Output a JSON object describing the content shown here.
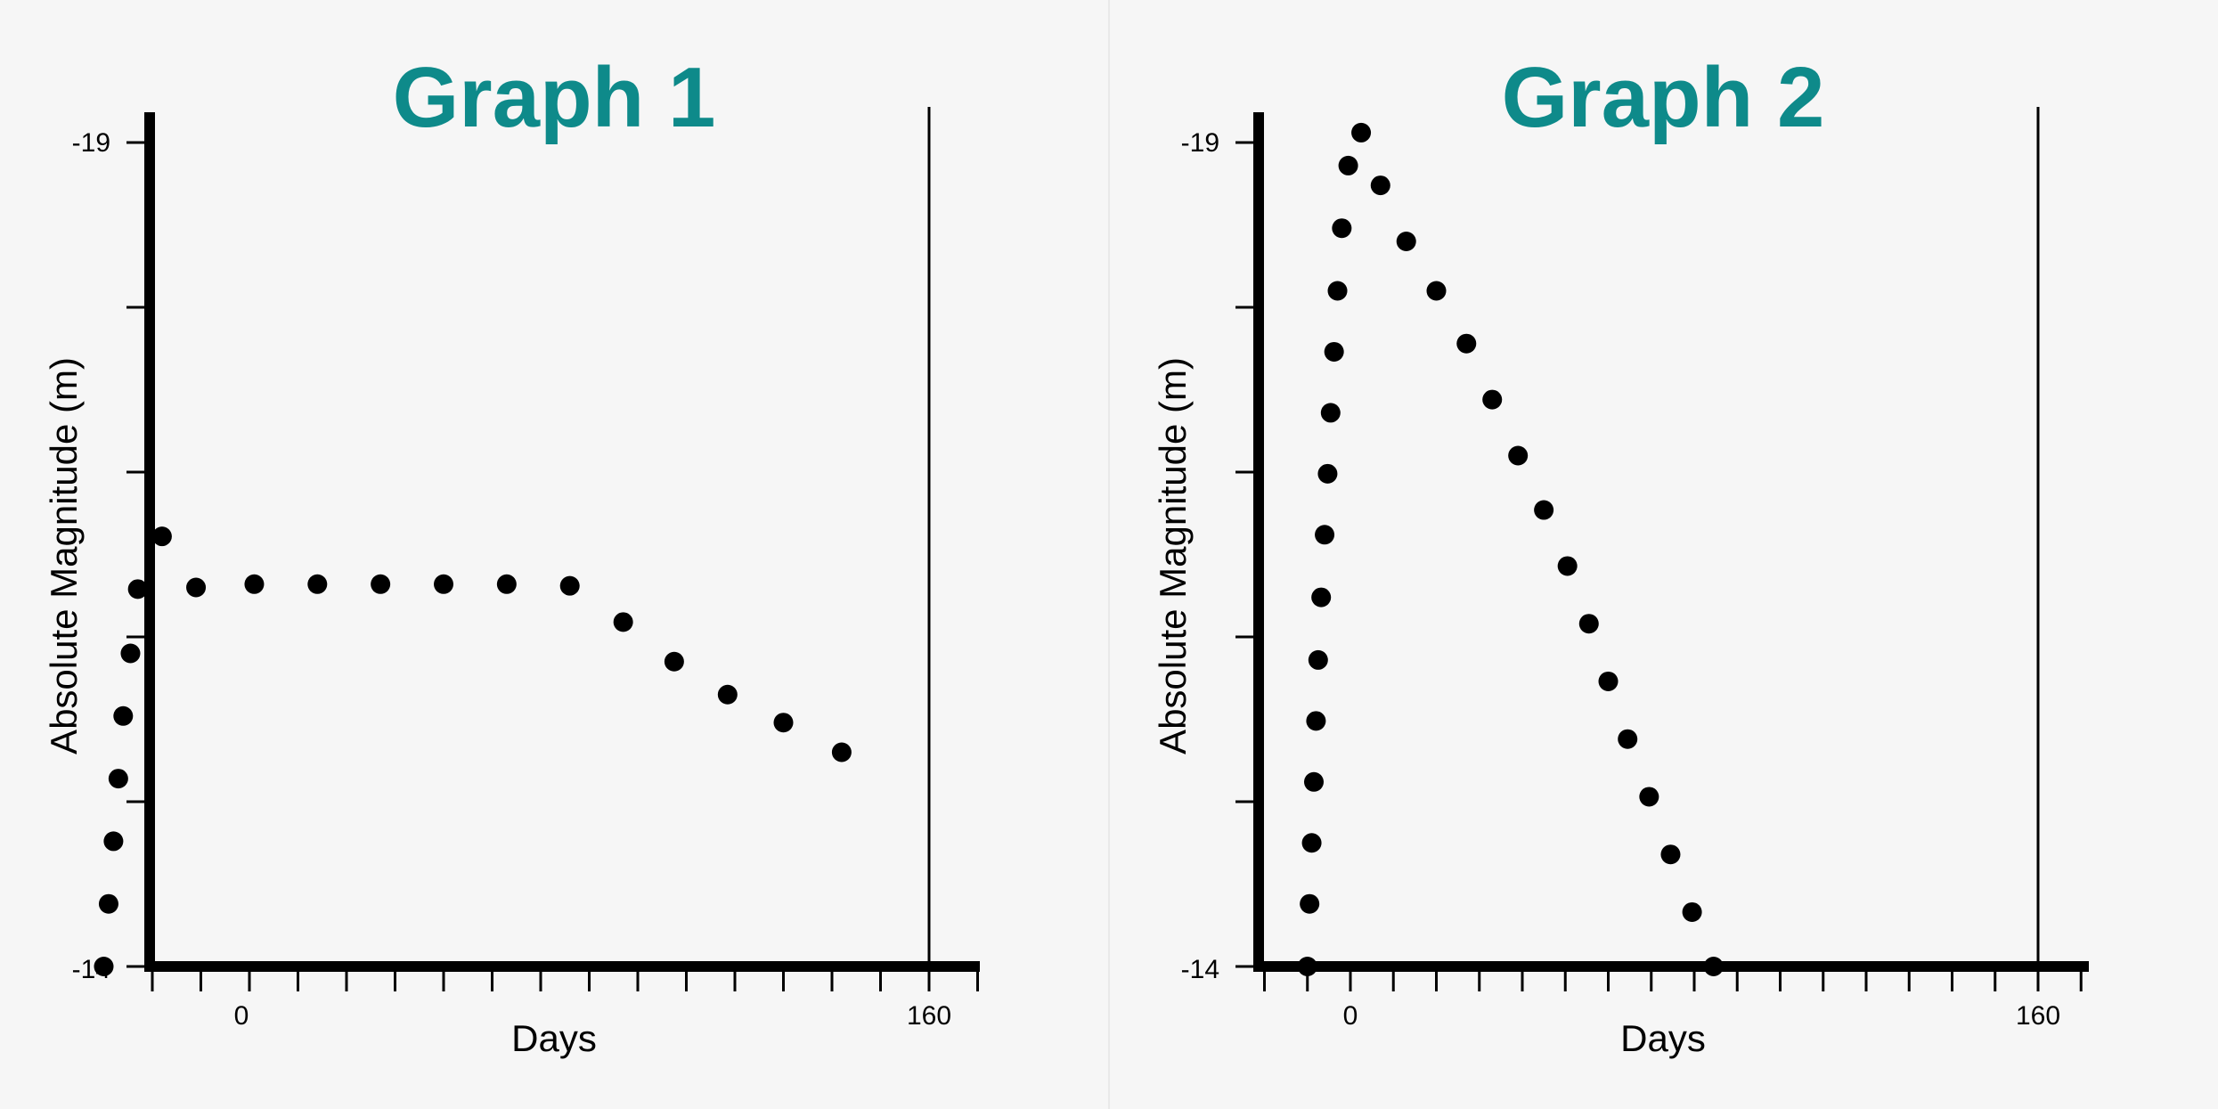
{
  "colors": {
    "title": "#0e8a8a",
    "ink": "#000000",
    "background": "#f6f6f6"
  },
  "chart_data": [
    {
      "type": "scatter",
      "title": "Graph 1",
      "xlabel": "Days",
      "ylabel": "Absolute Magnitude (m)",
      "x_tick_labels": [
        "0",
        "160"
      ],
      "y_tick_labels": [
        "-19",
        "-14"
      ],
      "xlim": [
        -20,
        160
      ],
      "ylim": [
        -14,
        -19
      ],
      "y_inverted": true,
      "grid": false,
      "series": [
        {
          "points": [
            {
              "x": -10,
              "y": -14.0
            },
            {
              "x": -9,
              "y": -14.38
            },
            {
              "x": -8,
              "y": -14.76
            },
            {
              "x": -7,
              "y": -15.14
            },
            {
              "x": -6,
              "y": -15.52
            },
            {
              "x": -4.5,
              "y": -15.9
            },
            {
              "x": -3,
              "y": -16.29
            },
            {
              "x": 2,
              "y": -16.61
            },
            {
              "x": 9,
              "y": -16.3
            },
            {
              "x": 21,
              "y": -16.32
            },
            {
              "x": 34,
              "y": -16.32
            },
            {
              "x": 47,
              "y": -16.32
            },
            {
              "x": 60,
              "y": -16.32
            },
            {
              "x": 73,
              "y": -16.32
            },
            {
              "x": 86,
              "y": -16.31
            },
            {
              "x": 97,
              "y": -16.09
            },
            {
              "x": 107.5,
              "y": -15.85
            },
            {
              "x": 118.5,
              "y": -15.65
            },
            {
              "x": 130,
              "y": -15.48
            },
            {
              "x": 142,
              "y": -15.3
            }
          ]
        }
      ]
    },
    {
      "type": "scatter",
      "title": "Graph 2",
      "xlabel": "Days",
      "ylabel": "Absolute Magnitude (m)",
      "x_tick_labels": [
        "0",
        "160"
      ],
      "y_tick_labels": [
        "-19",
        "-14"
      ],
      "xlim": [
        -20,
        160
      ],
      "ylim": [
        -14,
        -19
      ],
      "y_inverted": true,
      "grid": false,
      "series": [
        {
          "points": [
            {
              "x": -10,
              "y": -14.0
            },
            {
              "x": -9.5,
              "y": -14.38
            },
            {
              "x": -9,
              "y": -14.75
            },
            {
              "x": -8.5,
              "y": -15.12
            },
            {
              "x": -8,
              "y": -15.49
            },
            {
              "x": -7.5,
              "y": -15.86
            },
            {
              "x": -6.8,
              "y": -16.24
            },
            {
              "x": -6,
              "y": -16.62
            },
            {
              "x": -5.3,
              "y": -16.99
            },
            {
              "x": -4.6,
              "y": -17.36
            },
            {
              "x": -3.8,
              "y": -17.73
            },
            {
              "x": -3,
              "y": -18.1
            },
            {
              "x": -2,
              "y": -18.48
            },
            {
              "x": -0.5,
              "y": -18.86
            },
            {
              "x": 2.5,
              "y": -19.06
            },
            {
              "x": 7,
              "y": -18.74
            },
            {
              "x": 13,
              "y": -18.4
            },
            {
              "x": 20,
              "y": -18.1
            },
            {
              "x": 27,
              "y": -17.78
            },
            {
              "x": 33,
              "y": -17.44
            },
            {
              "x": 39,
              "y": -17.1
            },
            {
              "x": 45,
              "y": -16.77
            },
            {
              "x": 50.5,
              "y": -16.43
            },
            {
              "x": 55.5,
              "y": -16.08
            },
            {
              "x": 60,
              "y": -15.73
            },
            {
              "x": 64.5,
              "y": -15.38
            },
            {
              "x": 69.5,
              "y": -15.03
            },
            {
              "x": 74.5,
              "y": -14.68
            },
            {
              "x": 79.5,
              "y": -14.33
            },
            {
              "x": 84.5,
              "y": -14.0
            }
          ]
        }
      ]
    }
  ]
}
